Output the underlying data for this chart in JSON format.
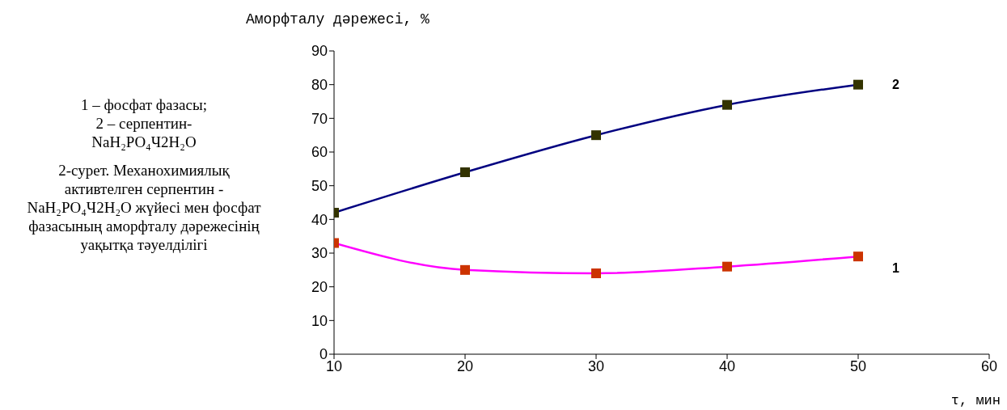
{
  "chart_data": {
    "type": "line",
    "xlabel": "τ, мин",
    "ylabel": "Аморфталу дәрежесі, %",
    "x": [
      10,
      20,
      30,
      40,
      50
    ],
    "series": [
      {
        "name": "1",
        "color": "#ff00ff",
        "colors": [
          "#cc3300",
          "#cc3300",
          "#cc3300",
          "#cc3300",
          "#cc3300"
        ],
        "values": [
          33,
          25,
          24,
          26,
          29
        ]
      },
      {
        "name": "2",
        "color": "#000080",
        "colors": [
          "#333300",
          "#333300",
          "#333300",
          "#333300",
          "#333300"
        ],
        "values": [
          42,
          54,
          65,
          74,
          80
        ]
      }
    ],
    "xlim": [
      10,
      60
    ],
    "xticks": [
      10,
      20,
      30,
      40,
      50,
      60
    ],
    "ylim": [
      0,
      90
    ],
    "yticks": [
      0,
      10,
      20,
      30,
      40,
      50,
      60,
      70,
      80,
      90
    ],
    "grid": false,
    "marker": "square",
    "annotations": [
      "1 – фосфат фазасы;\n2 – серпентин-\nNaH₂PO₄Ч2H₂O",
      "2-сурет. Механохимиялық активтелген серпентин - NaH₂PO₄Ч2H₂O жүйесі мен фосфат фазасының аморфталу дәрежесінің уақытқа тәуелділігі"
    ]
  }
}
